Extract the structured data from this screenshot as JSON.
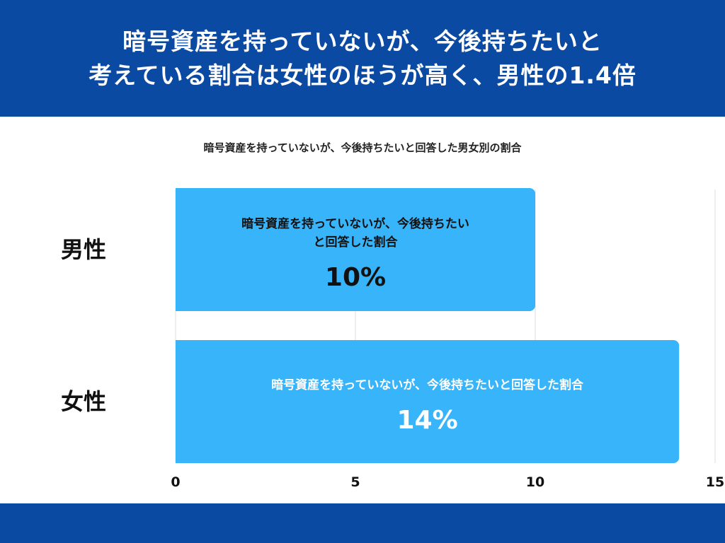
{
  "header": {
    "line1": "暗号資産を持っていないが、今後持ちたいと",
    "line2": "考えている割合は女性のほうが高く、男性の1.4倍"
  },
  "colors": {
    "header_bg": "#0b4aa3",
    "bar": "#38b4fa",
    "gridline": "#dddddd"
  },
  "chart_data": {
    "type": "bar",
    "orientation": "horizontal",
    "title": "暗号資産を持っていないが、今後持ちたいと回答した男女別の割合",
    "categories": [
      "男性",
      "女性"
    ],
    "series": [
      {
        "values": [
          10,
          14
        ]
      }
    ],
    "bar_labels": [
      {
        "lines": [
          "暗号資産を持っていないが、今後持ちたい",
          "と回答した割合"
        ],
        "value": "10%",
        "value_color": "#111111"
      },
      {
        "lines": [
          "暗号資産を持っていないが、今後持ちたいと回答した割合"
        ],
        "value": "14%",
        "value_color": "#ffffff"
      }
    ],
    "xlim": [
      0,
      15
    ],
    "xticks": [
      0,
      5,
      10,
      15
    ],
    "xtick_labels": [
      "0",
      "5",
      "10",
      "15"
    ],
    "grid": true,
    "legend": "none"
  }
}
